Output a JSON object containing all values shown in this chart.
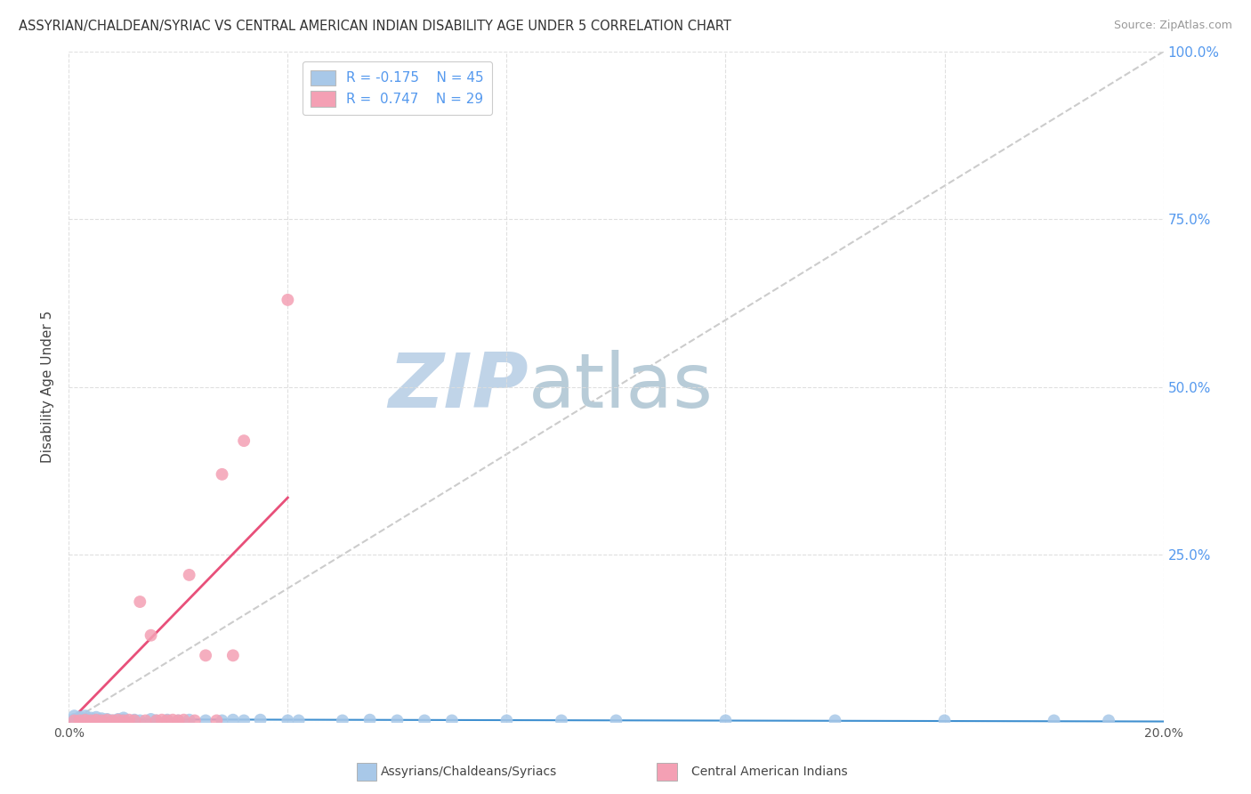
{
  "title": "ASSYRIAN/CHALDEAN/SYRIAC VS CENTRAL AMERICAN INDIAN DISABILITY AGE UNDER 5 CORRELATION CHART",
  "source": "Source: ZipAtlas.com",
  "ylabel": "Disability Age Under 5",
  "xlim": [
    0.0,
    0.2
  ],
  "ylim": [
    0.0,
    1.0
  ],
  "xticks": [
    0.0,
    0.04,
    0.08,
    0.12,
    0.16,
    0.2
  ],
  "xtick_labels": [
    "0.0%",
    "",
    "",
    "",
    "",
    "20.0%"
  ],
  "ytick_labels_right": [
    "",
    "25.0%",
    "50.0%",
    "75.0%",
    "100.0%"
  ],
  "yticks_right": [
    0.0,
    0.25,
    0.5,
    0.75,
    1.0
  ],
  "blue_R": -0.175,
  "blue_N": 45,
  "pink_R": 0.747,
  "pink_N": 29,
  "blue_color": "#a8c8e8",
  "pink_color": "#f4a0b4",
  "blue_scatter_x": [
    0.001,
    0.001,
    0.002,
    0.002,
    0.003,
    0.003,
    0.003,
    0.004,
    0.004,
    0.005,
    0.005,
    0.006,
    0.006,
    0.007,
    0.008,
    0.009,
    0.01,
    0.01,
    0.012,
    0.013,
    0.015,
    0.016,
    0.018,
    0.02,
    0.022,
    0.025,
    0.028,
    0.03,
    0.032,
    0.035,
    0.04,
    0.042,
    0.05,
    0.055,
    0.06,
    0.065,
    0.07,
    0.08,
    0.09,
    0.1,
    0.12,
    0.14,
    0.16,
    0.18,
    0.19
  ],
  "blue_scatter_y": [
    0.005,
    0.01,
    0.003,
    0.008,
    0.004,
    0.006,
    0.01,
    0.003,
    0.007,
    0.004,
    0.008,
    0.003,
    0.006,
    0.005,
    0.003,
    0.005,
    0.004,
    0.007,
    0.004,
    0.003,
    0.005,
    0.003,
    0.004,
    0.003,
    0.004,
    0.003,
    0.003,
    0.004,
    0.003,
    0.004,
    0.003,
    0.003,
    0.003,
    0.004,
    0.003,
    0.003,
    0.003,
    0.003,
    0.003,
    0.003,
    0.003,
    0.003,
    0.003,
    0.003,
    0.003
  ],
  "pink_scatter_x": [
    0.001,
    0.002,
    0.003,
    0.004,
    0.005,
    0.006,
    0.007,
    0.008,
    0.009,
    0.01,
    0.011,
    0.012,
    0.013,
    0.014,
    0.015,
    0.016,
    0.017,
    0.018,
    0.019,
    0.02,
    0.021,
    0.022,
    0.023,
    0.025,
    0.027,
    0.028,
    0.03,
    0.032,
    0.04
  ],
  "pink_scatter_y": [
    0.003,
    0.003,
    0.004,
    0.003,
    0.004,
    0.003,
    0.004,
    0.003,
    0.004,
    0.003,
    0.004,
    0.003,
    0.18,
    0.003,
    0.13,
    0.003,
    0.004,
    0.003,
    0.004,
    0.003,
    0.004,
    0.22,
    0.003,
    0.1,
    0.003,
    0.37,
    0.1,
    0.42,
    0.63
  ],
  "diag_line_color": "#cccccc",
  "pink_line_color": "#e8507a",
  "blue_line_color": "#4090d0",
  "background_color": "#ffffff",
  "grid_color": "#dddddd",
  "watermark_zip_color": "#c0d4e8",
  "watermark_atlas_color": "#b8ccd8"
}
